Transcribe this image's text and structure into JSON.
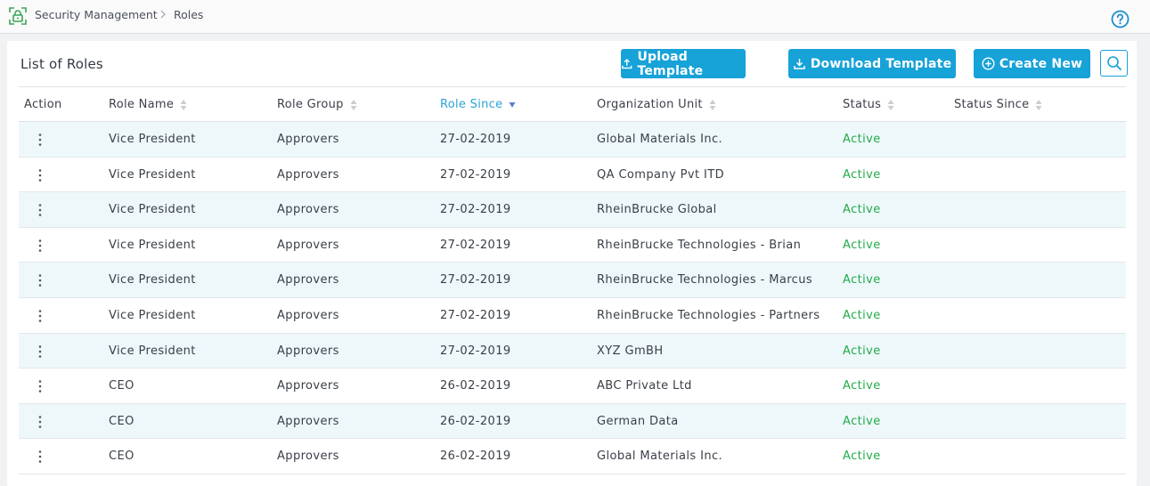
{
  "breadcrumb": {
    "section": "Security Management",
    "page": "Roles"
  },
  "page_title": "List of Roles",
  "toolbar": {
    "upload_label": "Upload Template",
    "download_label": "Download Template",
    "create_label": "Create New"
  },
  "columns": {
    "action": "Action",
    "role_name": "Role Name",
    "role_group": "Role Group",
    "role_since": "Role Since",
    "org_unit": "Organization Unit",
    "status": "Status",
    "status_since": "Status Since"
  },
  "sort": {
    "column": "role_since",
    "direction": "desc"
  },
  "colors": {
    "accent": "#17a2d8",
    "active_status": "#22ab4a",
    "row_alt": "#eef8fb"
  },
  "icons": [
    "lock-icon",
    "help-icon",
    "upload-icon",
    "download-icon",
    "plus-circle-icon",
    "search-icon",
    "kebab-menu-icon",
    "sort-icon"
  ],
  "rows": [
    {
      "role_name": "Vice President",
      "role_group": "Approvers",
      "role_since": "27-02-2019",
      "org_unit": "Global Materials Inc.",
      "status": "Active",
      "status_since": ""
    },
    {
      "role_name": "Vice President",
      "role_group": "Approvers",
      "role_since": "27-02-2019",
      "org_unit": "QA Company Pvt ITD",
      "status": "Active",
      "status_since": ""
    },
    {
      "role_name": "Vice President",
      "role_group": "Approvers",
      "role_since": "27-02-2019",
      "org_unit": "RheinBrucke Global",
      "status": "Active",
      "status_since": ""
    },
    {
      "role_name": "Vice President",
      "role_group": "Approvers",
      "role_since": "27-02-2019",
      "org_unit": "RheinBrucke Technologies - Brian",
      "status": "Active",
      "status_since": ""
    },
    {
      "role_name": "Vice President",
      "role_group": "Approvers",
      "role_since": "27-02-2019",
      "org_unit": "RheinBrucke Technologies - Marcus",
      "status": "Active",
      "status_since": ""
    },
    {
      "role_name": "Vice President",
      "role_group": "Approvers",
      "role_since": "27-02-2019",
      "org_unit": "RheinBrucke Technologies - Partners",
      "status": "Active",
      "status_since": ""
    },
    {
      "role_name": "Vice President",
      "role_group": "Approvers",
      "role_since": "27-02-2019",
      "org_unit": "XYZ GmBH",
      "status": "Active",
      "status_since": ""
    },
    {
      "role_name": "CEO",
      "role_group": "Approvers",
      "role_since": "26-02-2019",
      "org_unit": "ABC Private Ltd",
      "status": "Active",
      "status_since": ""
    },
    {
      "role_name": "CEO",
      "role_group": "Approvers",
      "role_since": "26-02-2019",
      "org_unit": "German Data",
      "status": "Active",
      "status_since": ""
    },
    {
      "role_name": "CEO",
      "role_group": "Approvers",
      "role_since": "26-02-2019",
      "org_unit": "Global Materials Inc.",
      "status": "Active",
      "status_since": ""
    }
  ]
}
